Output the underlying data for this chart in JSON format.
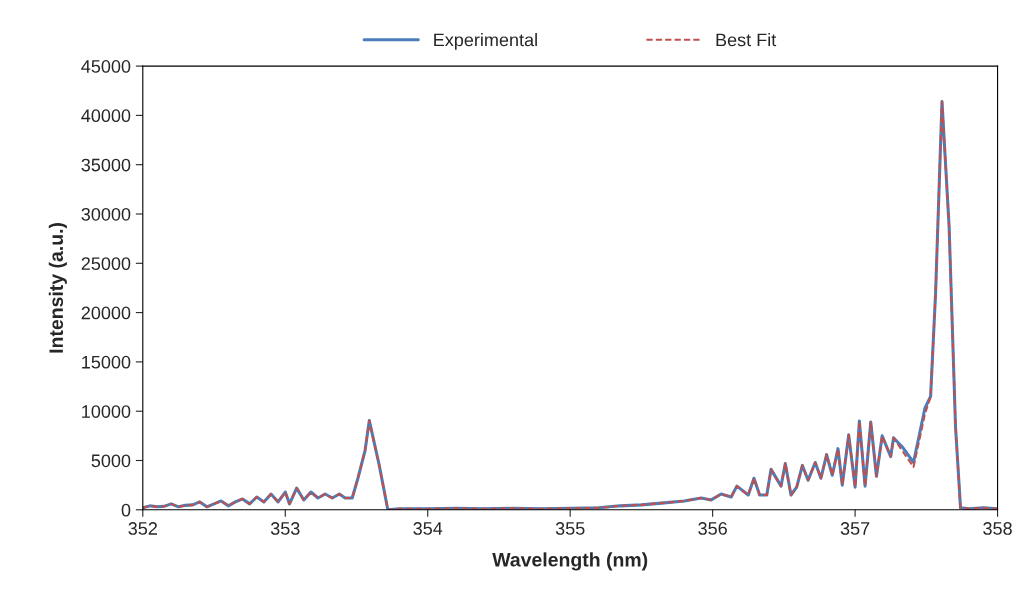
{
  "chart_data": {
    "type": "line",
    "xlabel": "Wavelength (nm)",
    "ylabel": "Intensity (a.u.)",
    "xlim": [
      352,
      358
    ],
    "xticks": [
      352,
      353,
      354,
      355,
      356,
      357,
      358
    ],
    "ylim": [
      0,
      45000
    ],
    "yticks": [
      0,
      5000,
      10000,
      15000,
      20000,
      25000,
      30000,
      35000,
      40000,
      45000
    ],
    "legend": "top",
    "grid": false,
    "marker": "none",
    "series": [
      {
        "name": "Experimental",
        "color": "#4a7ebb",
        "line_style": "solid",
        "x": [
          352.0,
          352.05,
          352.1,
          352.15,
          352.2,
          352.25,
          352.3,
          352.35,
          352.4,
          352.45,
          352.5,
          352.55,
          352.6,
          352.65,
          352.7,
          352.75,
          352.8,
          352.85,
          352.9,
          352.95,
          353.0,
          353.03,
          353.08,
          353.13,
          353.18,
          353.23,
          353.28,
          353.33,
          353.38,
          353.42,
          353.47,
          353.51,
          353.56,
          353.59,
          353.62,
          353.66,
          353.72,
          353.8,
          354.0,
          354.2,
          354.4,
          354.6,
          354.8,
          355.0,
          355.2,
          355.35,
          355.5,
          355.66,
          355.8,
          355.92,
          355.99,
          356.06,
          356.13,
          356.17,
          356.25,
          356.29,
          356.33,
          356.38,
          356.41,
          356.48,
          356.51,
          356.55,
          356.59,
          356.63,
          356.67,
          356.72,
          356.76,
          356.8,
          356.84,
          356.88,
          356.91,
          356.955,
          357.0,
          357.03,
          357.07,
          357.11,
          357.15,
          357.19,
          357.25,
          357.27,
          357.33,
          357.41,
          357.49,
          357.53,
          357.565,
          357.61,
          357.66,
          357.705,
          357.74,
          357.8,
          357.9,
          358.0
        ],
        "values": [
          200,
          400,
          300,
          350,
          600,
          300,
          450,
          500,
          800,
          300,
          600,
          900,
          400,
          800,
          1100,
          600,
          1300,
          800,
          1600,
          800,
          1800,
          600,
          2200,
          1000,
          1800,
          1200,
          1600,
          1200,
          1600,
          1200,
          1200,
          3200,
          6000,
          9050,
          7100,
          4500,
          0,
          100,
          100,
          150,
          100,
          150,
          100,
          150,
          200,
          400,
          500,
          700,
          900,
          1200,
          1000,
          1600,
          1300,
          2400,
          1500,
          3200,
          1500,
          1500,
          4100,
          2400,
          4700,
          1500,
          2300,
          4500,
          3000,
          4800,
          3200,
          5600,
          3500,
          6200,
          2500,
          7600,
          2300,
          9000,
          2400,
          8900,
          3400,
          7500,
          5400,
          7300,
          6400,
          4800,
          10300,
          11500,
          22000,
          41400,
          28700,
          8400,
          200,
          100,
          200,
          100
        ]
      },
      {
        "name": "Best Fit",
        "color": "#c0504d",
        "line_style": "dashed",
        "x": [
          352.0,
          352.05,
          352.1,
          352.15,
          352.2,
          352.25,
          352.3,
          352.35,
          352.4,
          352.45,
          352.5,
          352.55,
          352.6,
          352.65,
          352.7,
          352.75,
          352.8,
          352.85,
          352.9,
          352.95,
          353.0,
          353.03,
          353.08,
          353.13,
          353.18,
          353.23,
          353.28,
          353.33,
          353.38,
          353.42,
          353.47,
          353.51,
          353.56,
          353.59,
          353.62,
          353.66,
          353.72,
          353.8,
          354.0,
          354.2,
          354.4,
          354.6,
          354.8,
          355.0,
          355.2,
          355.35,
          355.5,
          355.66,
          355.8,
          355.92,
          355.99,
          356.06,
          356.13,
          356.17,
          356.25,
          356.29,
          356.33,
          356.38,
          356.41,
          356.48,
          356.51,
          356.55,
          356.59,
          356.63,
          356.67,
          356.72,
          356.76,
          356.8,
          356.84,
          356.88,
          356.91,
          356.955,
          357.0,
          357.03,
          357.07,
          357.11,
          357.15,
          357.19,
          357.25,
          357.27,
          357.33,
          357.41,
          357.49,
          357.53,
          357.565,
          357.61,
          357.66,
          357.705,
          357.74,
          357.8,
          357.9,
          358.0
        ],
        "values": [
          200,
          400,
          300,
          350,
          600,
          300,
          450,
          500,
          800,
          300,
          600,
          900,
          400,
          800,
          1100,
          600,
          1300,
          800,
          1600,
          800,
          1800,
          600,
          2200,
          1000,
          1800,
          1200,
          1600,
          1200,
          1600,
          1200,
          1200,
          3200,
          6000,
          9050,
          7000,
          4500,
          0,
          100,
          100,
          150,
          100,
          150,
          100,
          150,
          200,
          400,
          500,
          700,
          900,
          1200,
          1000,
          1600,
          1300,
          2400,
          1500,
          3200,
          1500,
          1500,
          4100,
          2400,
          4700,
          1500,
          2300,
          4500,
          3000,
          4800,
          3200,
          5600,
          3500,
          6200,
          2500,
          7600,
          2300,
          9000,
          2400,
          8900,
          3400,
          7500,
          5400,
          7300,
          6000,
          4350,
          9700,
          11500,
          22000,
          41400,
          28700,
          8400,
          200,
          100,
          200,
          100
        ]
      }
    ]
  }
}
